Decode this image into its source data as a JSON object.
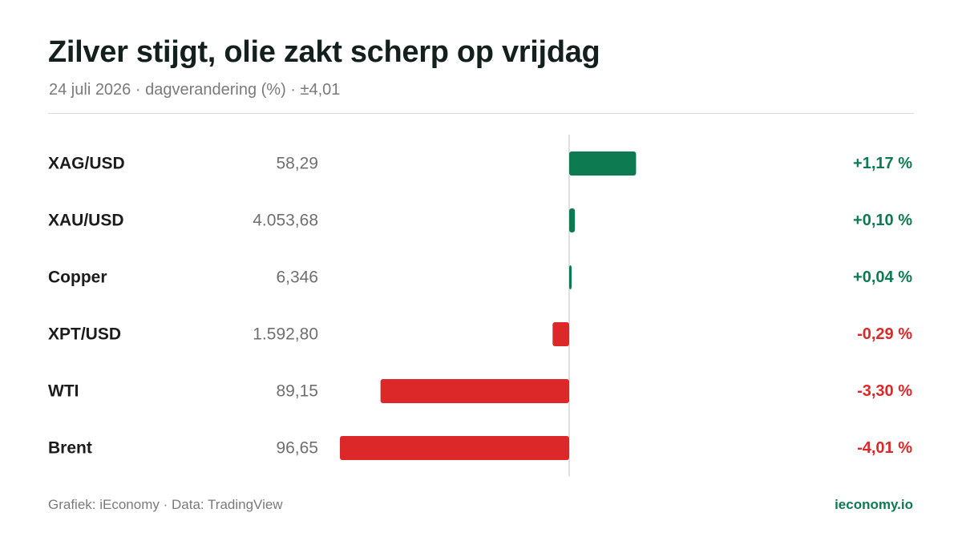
{
  "title": "Zilver stijgt, olie zakt scherp op vrijdag",
  "subtitle": "24 juli 2026 · dagverandering (%) · ±4,01",
  "footer": {
    "source": "Grafiek: iEconomy · Data: TradingView",
    "brand": "ieconomy.io"
  },
  "colors": {
    "positive": "#0e7a52",
    "negative": "#dc2828",
    "axis": "#d6d6d6"
  },
  "chart_data": {
    "type": "bar",
    "orientation": "horizontal",
    "xlim": [
      -4.01,
      4.01
    ],
    "categories": [
      "XAG/USD",
      "XAU/USD",
      "Copper",
      "XPT/USD",
      "WTI",
      "Brent"
    ],
    "prices": [
      "58,29",
      "4.053,68",
      "6,346",
      "1.592,80",
      "89,15",
      "96,65"
    ],
    "values": [
      1.17,
      0.1,
      0.04,
      -0.29,
      -3.3,
      -4.01
    ],
    "value_labels": [
      "+1,17 %",
      "+0,10 %",
      "+0,04 %",
      "-0,29 %",
      "-3,30 %",
      "-4,01 %"
    ],
    "grid": false
  }
}
